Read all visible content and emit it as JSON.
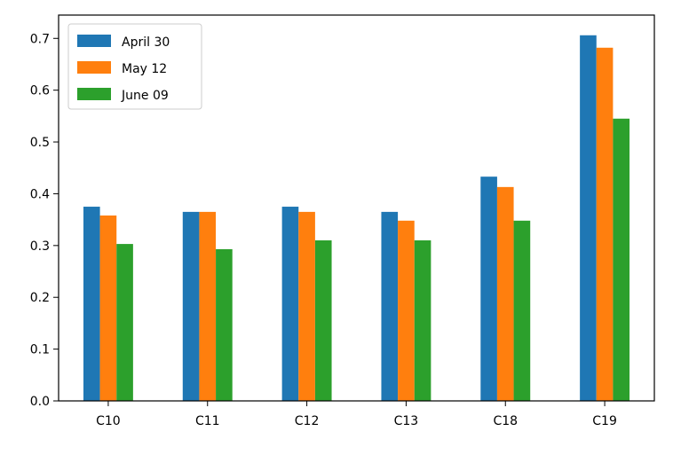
{
  "chart_data": {
    "type": "bar",
    "title": "",
    "xlabel": "",
    "ylabel": "",
    "categories": [
      "C10",
      "C11",
      "C12",
      "C13",
      "C18",
      "C19"
    ],
    "series": [
      {
        "name": "April 30",
        "color": "#1f77b4",
        "values": [
          0.375,
          0.365,
          0.375,
          0.365,
          0.433,
          0.706
        ]
      },
      {
        "name": "May 12",
        "color": "#ff7f0e",
        "values": [
          0.358,
          0.365,
          0.365,
          0.348,
          0.413,
          0.682
        ]
      },
      {
        "name": "June 09",
        "color": "#2ca02c",
        "values": [
          0.303,
          0.293,
          0.31,
          0.31,
          0.348,
          0.545
        ]
      }
    ],
    "ylim": [
      0,
      0.745
    ],
    "yticks": [
      "0.0",
      "0.1",
      "0.2",
      "0.3",
      "0.4",
      "0.5",
      "0.6",
      "0.7"
    ],
    "legend_position": "upper-left",
    "grid": false
  }
}
